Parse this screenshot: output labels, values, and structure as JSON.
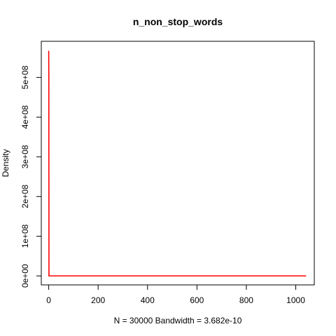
{
  "chart_data": {
    "type": "line",
    "title": "n_non_stop_words",
    "xlabel": "N = 30000   Bandwidth = 3.682e-10",
    "ylabel": "Density",
    "xlim": [
      -30,
      1075
    ],
    "ylim": [
      -22700000,
      591000000
    ],
    "x_ticks": [
      0,
      200,
      400,
      600,
      800,
      1000
    ],
    "x_tick_labels": [
      "0",
      "200",
      "400",
      "600",
      "800",
      "1000"
    ],
    "y_ticks": [
      0,
      100000000,
      200000000,
      300000000,
      400000000,
      500000000
    ],
    "y_tick_labels": [
      "0e+00",
      "1e+08",
      "2e+08",
      "3e+08",
      "4e+08",
      "5e+08"
    ],
    "series": [
      {
        "color": "#ff0000",
        "x": [
          0,
          0.5,
          1,
          1,
          1042
        ],
        "y": [
          567000000,
          510000000,
          1000000,
          0,
          0
        ]
      }
    ],
    "grid": false,
    "legend": "none"
  }
}
